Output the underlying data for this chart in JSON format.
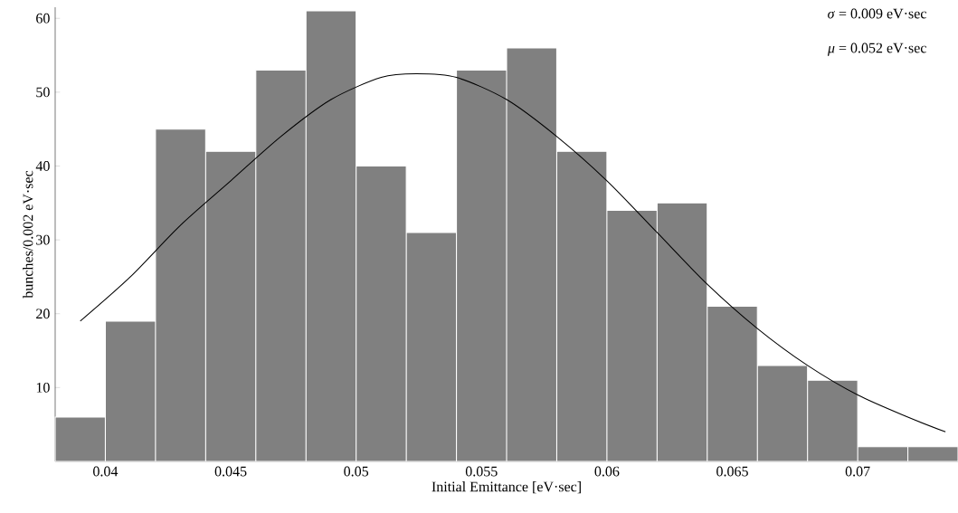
{
  "chart_data": {
    "type": "histogram",
    "xlabel": "Initial Emittance [eV·sec]",
    "ylabel": "bunches/0.002 eV·sec",
    "annotations": [
      "*σ* = 0.009 eV·sec",
      "*μ* = 0.052 eV·sec"
    ],
    "bins": [
      0.038,
      0.04,
      0.042,
      0.044,
      0.046,
      0.048,
      0.05,
      0.052,
      0.054,
      0.056,
      0.058,
      0.06,
      0.062,
      0.064,
      0.066,
      0.068,
      0.07,
      0.072,
      0.074
    ],
    "series": [
      {
        "color": "#808080",
        "values": [
          6,
          19,
          45,
          42,
          53,
          61,
          40,
          31,
          53,
          56,
          42,
          34,
          35,
          21,
          13,
          11,
          2,
          2
        ]
      },
      {
        "type": "line",
        "color": "#000000",
        "x": [
          0.039,
          0.041,
          0.043,
          0.045,
          0.047,
          0.049,
          0.051,
          0.0524,
          0.054,
          0.056,
          0.058,
          0.06,
          0.062,
          0.064,
          0.066,
          0.068,
          0.07,
          0.072,
          0.0735
        ],
        "values": [
          19,
          25,
          32,
          38,
          44,
          49,
          52,
          52.5,
          52,
          49,
          44,
          38,
          31,
          24,
          18,
          13,
          9,
          6,
          4
        ]
      }
    ],
    "xlim": [
      0.038,
      0.074
    ],
    "ylim": [
      0,
      61.5
    ],
    "xticks": [
      0.04,
      0.045,
      0.05,
      0.055,
      0.06,
      0.065,
      0.07
    ],
    "yticks": [
      10,
      20,
      30,
      40,
      50,
      60
    ]
  }
}
